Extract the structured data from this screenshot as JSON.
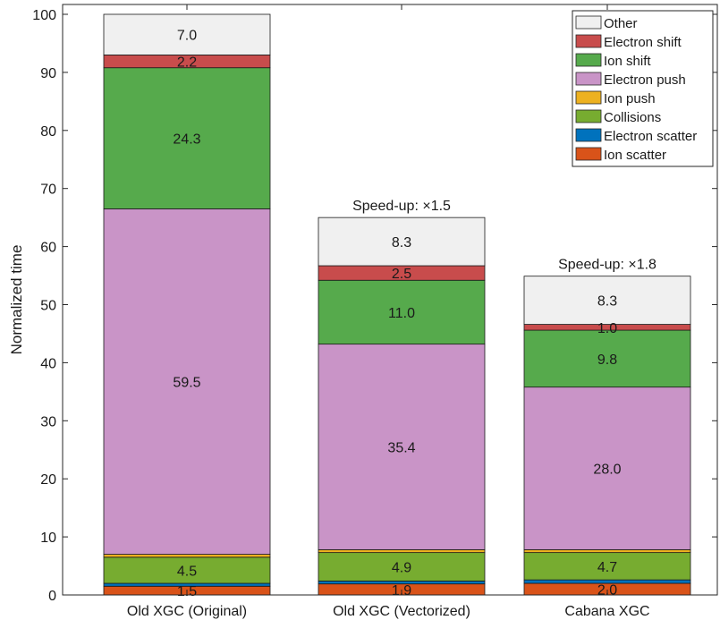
{
  "chart_data": {
    "type": "bar",
    "stacked": true,
    "title": "",
    "xlabel": "",
    "ylabel": "Normalized time",
    "ylim": [
      0,
      100
    ],
    "yticks": [
      0,
      10,
      20,
      30,
      40,
      50,
      60,
      70,
      80,
      90,
      100
    ],
    "grid": false,
    "legend_position": "top-right",
    "categories": [
      "Old XGC (Original)",
      "Old XGC (Vectorized)",
      "Cabana XGC"
    ],
    "annotations": [
      "",
      "Speed-up: ×1.5",
      "Speed-up: ×1.8"
    ],
    "series": [
      {
        "name": "Ion scatter",
        "color": "#D95319",
        "values": [
          1.5,
          1.9,
          2.0
        ],
        "labels": [
          "1.5",
          "1.9",
          "2.0"
        ]
      },
      {
        "name": "Electron scatter",
        "color": "#0072BD",
        "values": [
          0.5,
          0.5,
          0.6
        ],
        "labels": [
          "",
          "",
          ""
        ]
      },
      {
        "name": "Collisions",
        "color": "#77AC30",
        "values": [
          4.5,
          4.9,
          4.7
        ],
        "labels": [
          "4.5",
          "4.9",
          "4.7"
        ]
      },
      {
        "name": "Ion push",
        "color": "#EDB120",
        "values": [
          0.5,
          0.5,
          0.5
        ],
        "labels": [
          "",
          "",
          ""
        ]
      },
      {
        "name": "Electron push",
        "color": "#C994C7",
        "values": [
          59.5,
          35.4,
          28.0
        ],
        "labels": [
          "59.5",
          "35.4",
          "28.0"
        ]
      },
      {
        "name": "Ion shift",
        "color": "#56AA4C",
        "values": [
          24.3,
          11.0,
          9.8
        ],
        "labels": [
          "24.3",
          "11.0",
          "9.8"
        ]
      },
      {
        "name": "Electron shift",
        "color": "#C84C4C",
        "values": [
          2.2,
          2.5,
          1.0
        ],
        "labels": [
          "2.2",
          "2.5",
          "1.0"
        ]
      },
      {
        "name": "Other",
        "color": "#F0F0F0",
        "values": [
          7.0,
          8.3,
          8.3
        ],
        "labels": [
          "7.0",
          "8.3",
          "8.3"
        ]
      }
    ]
  }
}
